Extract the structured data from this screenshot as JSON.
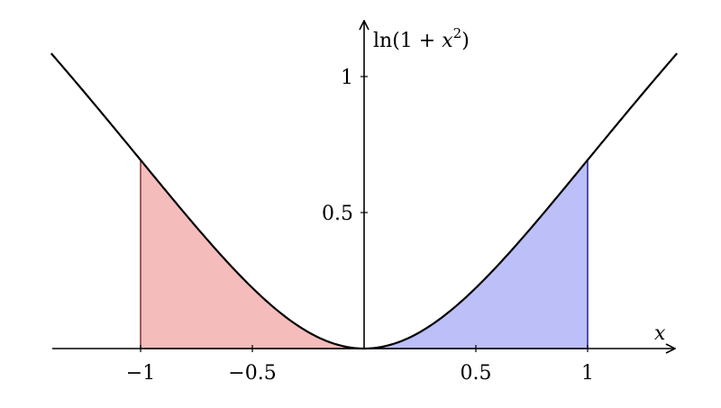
{
  "chart_data": {
    "type": "area",
    "function": "ln(1 + x^2)",
    "xlabel": "x",
    "ylabel": {
      "prefix": "ln(1 + ",
      "var": "x",
      "exp": "2",
      "suffix": ")"
    },
    "xlim": [
      -1.4,
      1.4
    ],
    "ylim": [
      0,
      1.2
    ],
    "grid": false,
    "x_ticks": [
      {
        "value": -1,
        "label": "−1"
      },
      {
        "value": -0.5,
        "label": "−0.5"
      },
      {
        "value": 0.5,
        "label": "0.5"
      },
      {
        "value": 1,
        "label": "1"
      }
    ],
    "y_ticks": [
      {
        "value": 0.5,
        "label": "0.5"
      },
      {
        "value": 1,
        "label": "1"
      }
    ],
    "curve": {
      "x_range": [
        -1.4,
        1.4
      ],
      "color": "#000000"
    },
    "shaded_regions": [
      {
        "name": "left",
        "x_from": -1,
        "x_to": 0,
        "fill": "#f5bcbc",
        "stroke": "#8a3a3a"
      },
      {
        "name": "right",
        "x_from": 0,
        "x_to": 1,
        "fill": "#bcbff8",
        "stroke": "#2d2d9a"
      }
    ]
  }
}
